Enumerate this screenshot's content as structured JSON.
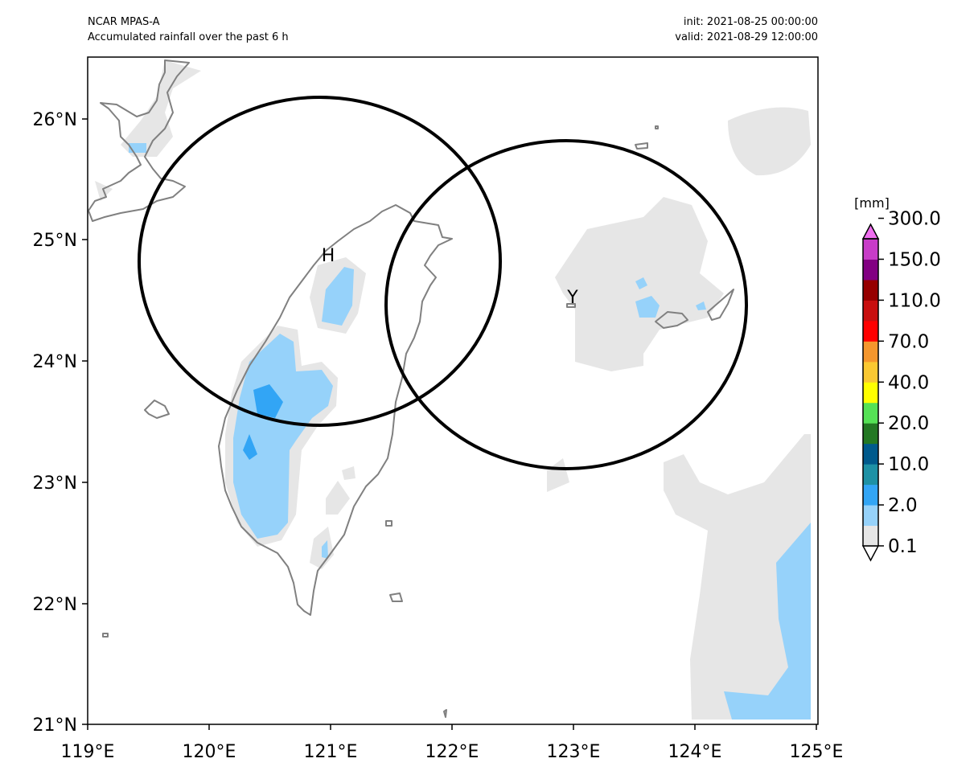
{
  "header": {
    "model": "NCAR MPAS-A",
    "product": "Accumulated rainfall over the past 6 h",
    "init": "init: 2021-08-25 00:00:00",
    "valid": "valid: 2021-08-29 12:00:00"
  },
  "map": {
    "lon_range": [
      119,
      125
    ],
    "lat_range": [
      21,
      26.5
    ],
    "lon_ticks": [
      "119°E",
      "120°E",
      "121°E",
      "122°E",
      "123°E",
      "124°E",
      "125°E"
    ],
    "lat_ticks": [
      "21°N",
      "22°N",
      "23°N",
      "24°N",
      "25°N",
      "26°N"
    ],
    "coastline_color": "#808080"
  },
  "sites": [
    {
      "label": "H",
      "lon": 120.9,
      "lat": 24.8,
      "ring_color": "#000000"
    },
    {
      "label": "Y",
      "lon": 122.95,
      "lat": 24.45,
      "ring_color": "#000000"
    }
  ],
  "colorbar": {
    "unit": "[mm]",
    "labels": [
      "0.1",
      "2.0",
      "10.0",
      "20.0",
      "40.0",
      "70.0",
      "110.0",
      "150.0",
      "300.0"
    ],
    "colors": [
      "#ffffff",
      "#e6e6e6",
      "#96d2fa",
      "#32a5f5",
      "#1e91a5",
      "#005a8c",
      "#237823",
      "#55e155",
      "#ffff00",
      "#fac832",
      "#f5962d",
      "#ff0000",
      "#c80f0f",
      "#960000",
      "#820082",
      "#c83cc8",
      "#f06ef0"
    ]
  }
}
